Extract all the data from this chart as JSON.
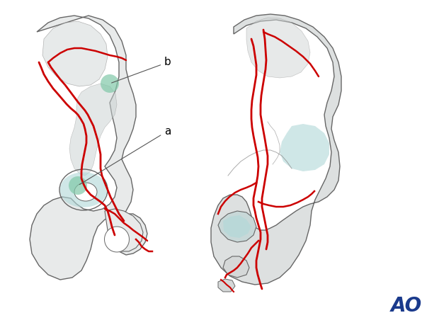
{
  "bg_color": "#ffffff",
  "bone_fill_light": "#e8eaea",
  "bone_fill_mid": "#d0d4d4",
  "bone_fill_dark": "#b8bebe",
  "bone_outline": "#666666",
  "inner_line": "#888888",
  "red_line": "#cc0000",
  "green_circle": "#80c8a8",
  "teal_fill": "#b0d8d8",
  "label_a": "a",
  "label_b": "b",
  "ao_color": "#1a3a8c",
  "title": ""
}
